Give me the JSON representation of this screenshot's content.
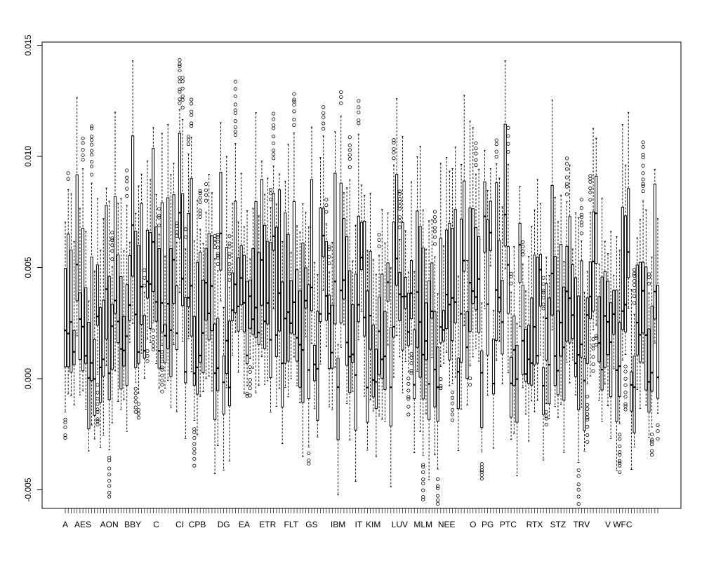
{
  "chart_data": {
    "type": "box",
    "title": "",
    "xlabel": "",
    "ylabel": "",
    "ylim": [
      -0.0059,
      0.0151
    ],
    "y_ticks": [
      -0.005,
      0.0,
      0.005,
      0.01,
      0.015
    ],
    "y_tick_labels": [
      "-0.005",
      "0.000",
      "0.005",
      "0.010",
      "0.015"
    ],
    "x_tick_labels": [
      "A",
      "AES",
      "AON",
      "BBY",
      "C",
      "CI",
      "CPB",
      "DG",
      "EA",
      "ETR",
      "FLT",
      "GS",
      "IBM",
      "IT",
      "KIM",
      "LUV",
      "MLM",
      "NEE",
      "O",
      "PG",
      "PTC",
      "RTX",
      "STZ",
      "TRV",
      "V",
      "WFC"
    ],
    "x_tick_label_slots": [
      0,
      6,
      15,
      23,
      31,
      39,
      45,
      54,
      61,
      69,
      77,
      84,
      93,
      100,
      105,
      114,
      122,
      130,
      139,
      144,
      151,
      160,
      168,
      176,
      185,
      190
    ],
    "n_categories": 203,
    "grid": false,
    "legend": "none",
    "box_values_approx": {
      "min": -0.0042,
      "max": 0.0143,
      "typical_median_range": [
        0.0005,
        0.004
      ]
    }
  }
}
